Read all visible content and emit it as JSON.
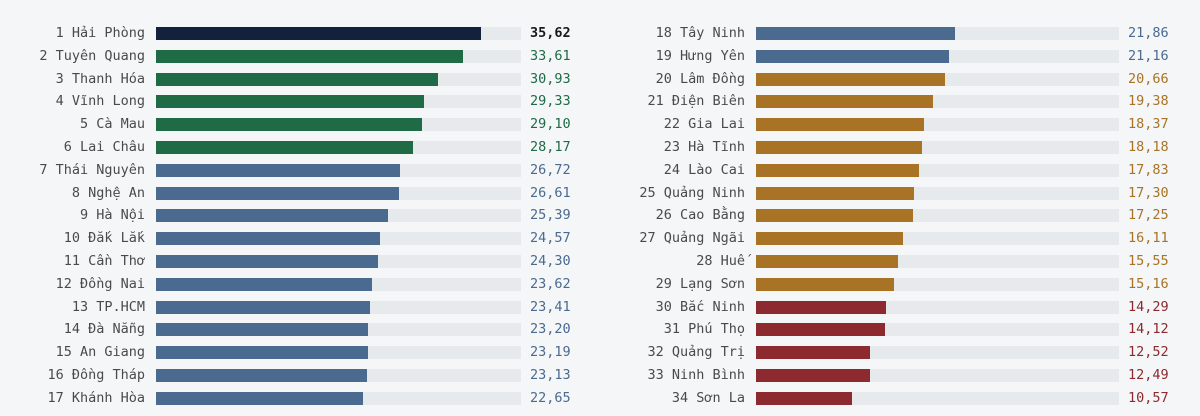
{
  "chart_data": {
    "type": "bar",
    "orientation": "horizontal",
    "xlim": [
      0,
      35.62
    ],
    "categories": [
      "1 Hải Phòng",
      "2 Tuyên Quang",
      "3 Thanh Hóa",
      "4 Vĩnh Long",
      "5 Cà Mau",
      "6 Lai Châu",
      "7 Thái Nguyên",
      "8 Nghệ An",
      "9 Hà Nội",
      "10 Đắk Lắk",
      "11 Cần Thơ",
      "12 Đồng Nai",
      "13 TP.HCM",
      "14 Đà Nẵng",
      "15 An Giang",
      "16 Đồng Tháp",
      "17 Khánh Hòa",
      "18 Tây Ninh",
      "19 Hưng Yên",
      "20 Lâm Đồng",
      "21 Điện Biên",
      "22 Gia Lai",
      "23 Hà Tĩnh",
      "24 Lào Cai",
      "25 Quảng Ninh",
      "26 Cao Bằng",
      "27 Quảng Ngãi",
      "28 Huế",
      "29 Lạng Sơn",
      "30 Bắc Ninh",
      "31 Phú Thọ",
      "32 Quảng Trị",
      "33 Ninh Bình",
      "34 Sơn La"
    ],
    "values": [
      35.62,
      33.61,
      30.93,
      29.33,
      29.1,
      28.17,
      26.72,
      26.61,
      25.39,
      24.57,
      24.3,
      23.62,
      23.41,
      23.2,
      23.19,
      23.13,
      22.65,
      21.86,
      21.16,
      20.66,
      19.38,
      18.37,
      18.18,
      17.83,
      17.3,
      17.25,
      16.11,
      15.55,
      15.16,
      14.29,
      14.12,
      12.52,
      12.49,
      10.57
    ],
    "value_labels": [
      "35,62",
      "33,61",
      "30,93",
      "29,33",
      "29,10",
      "28,17",
      "26,72",
      "26,61",
      "25,39",
      "24,57",
      "24,30",
      "23,62",
      "23,41",
      "23,20",
      "23,19",
      "23,13",
      "22,65",
      "21,86",
      "21,16",
      "20,66",
      "19,38",
      "18,37",
      "18,18",
      "17,83",
      "17,30",
      "17,25",
      "16,11",
      "15,55",
      "15,16",
      "14,29",
      "14,12",
      "12,52",
      "12,49",
      "10,57"
    ],
    "groups": [
      "top",
      "green",
      "green",
      "green",
      "green",
      "green",
      "blue",
      "blue",
      "blue",
      "blue",
      "blue",
      "blue",
      "blue",
      "blue",
      "blue",
      "blue",
      "blue",
      "blue",
      "blue",
      "orange",
      "orange",
      "orange",
      "orange",
      "orange",
      "orange",
      "orange",
      "orange",
      "orange",
      "orange",
      "red",
      "red",
      "red",
      "red",
      "red"
    ],
    "group_colors": {
      "top": {
        "bar": "#14213d",
        "text": "#1a1a1a"
      },
      "green": {
        "bar": "#1e6b45",
        "text": "#1e6b45"
      },
      "blue": {
        "bar": "#4a6a8f",
        "text": "#4a6a8f"
      },
      "orange": {
        "bar": "#a87325",
        "text": "#a87325"
      },
      "red": {
        "bar": "#8c2a2f",
        "text": "#8c2a2f"
      }
    },
    "track_color": "#e7eaed"
  }
}
